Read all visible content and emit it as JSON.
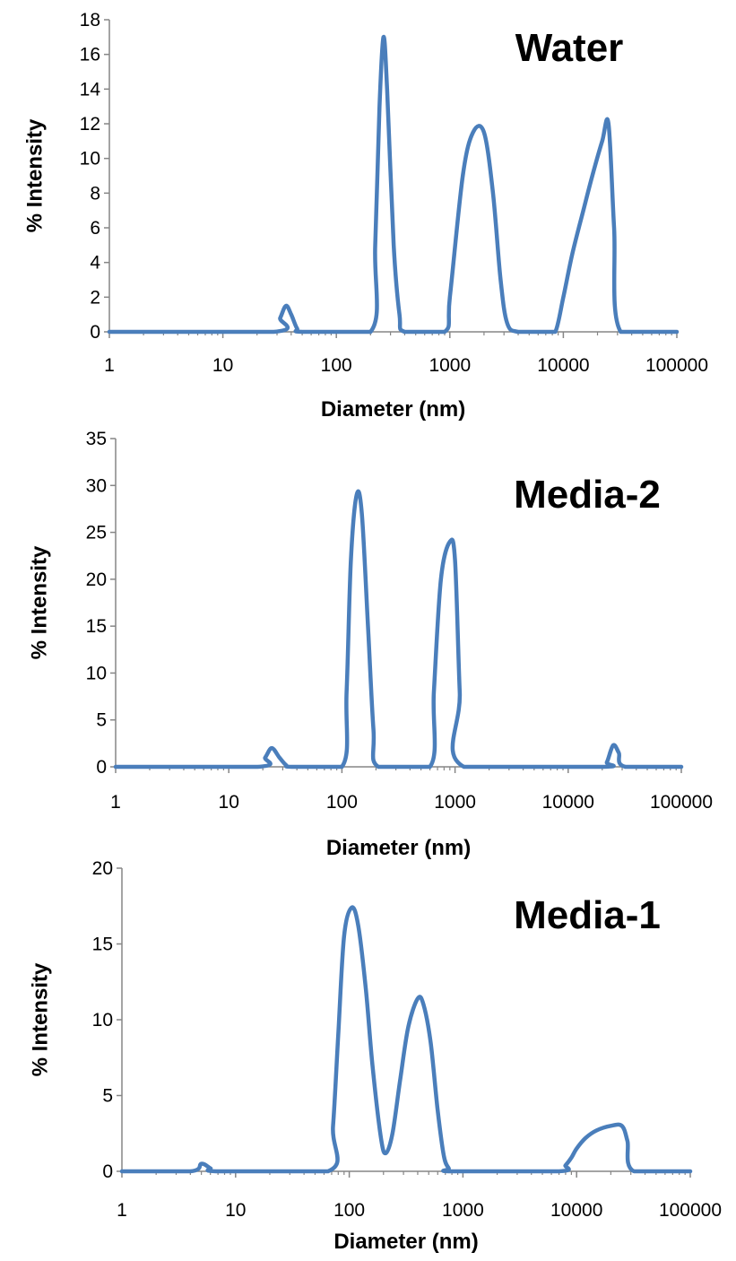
{
  "style": {
    "line_color": "#4A7EBB",
    "axis_color": "#868686",
    "text_color": "#000000"
  },
  "chart_data": [
    {
      "type": "line",
      "title": "Water",
      "xlabel": "Diameter (nm)",
      "ylabel": "% Intensity",
      "xscale": "log",
      "xlim": [
        1,
        100000
      ],
      "ylim": [
        0,
        18
      ],
      "xticks": [
        "1",
        "10",
        "100",
        "1000",
        "10000",
        "100000"
      ],
      "yticks": [
        "0",
        "2",
        "4",
        "6",
        "8",
        "10",
        "12",
        "14",
        "16",
        "18"
      ],
      "grid": false,
      "series": [
        {
          "x": [
            1,
            28,
            32,
            36,
            40,
            45,
            50,
            200,
            220,
            240,
            260,
            280,
            320,
            360,
            400,
            900,
            1000,
            1300,
            1600,
            2000,
            2400,
            2800,
            3200,
            4000,
            7000,
            8500,
            10000,
            12000,
            15000,
            18000,
            22000,
            25000,
            28000,
            32000,
            100000
          ],
          "y": [
            0,
            0,
            0.8,
            1.5,
            1.0,
            0.2,
            0,
            0,
            5,
            13,
            17,
            14,
            5,
            1,
            0,
            0,
            2,
            9,
            11.5,
            11.5,
            8,
            3,
            0.5,
            0,
            0,
            0,
            2,
            4.5,
            7,
            9,
            11,
            12,
            6,
            0,
            0
          ]
        }
      ]
    },
    {
      "type": "line",
      "title": "Media-2",
      "xlabel": "Diameter (nm)",
      "ylabel": "% Intensity",
      "xscale": "log",
      "xlim": [
        1,
        100000
      ],
      "ylim": [
        0,
        35
      ],
      "xticks": [
        "1",
        "10",
        "100",
        "1000",
        "10000",
        "100000"
      ],
      "yticks": [
        "0",
        "5",
        "10",
        "15",
        "20",
        "25",
        "30",
        "35"
      ],
      "grid": false,
      "series": [
        {
          "x": [
            1,
            18,
            21,
            24,
            28,
            32,
            36,
            100,
            110,
            120,
            135,
            150,
            170,
            190,
            210,
            600,
            650,
            750,
            900,
            1000,
            1100,
            1200,
            20000,
            22000,
            25000,
            28000,
            32000,
            100000
          ],
          "y": [
            0,
            0,
            1.0,
            2.0,
            1.0,
            0.2,
            0,
            0,
            8,
            22,
            29,
            27,
            15,
            4,
            0,
            0,
            8,
            20,
            24,
            22,
            8,
            0,
            0,
            0.5,
            2.3,
            1.5,
            0,
            0
          ]
        }
      ]
    },
    {
      "type": "line",
      "title": "Media-1",
      "xlabel": "Diameter (nm)",
      "ylabel": "% Intensity",
      "xscale": "log",
      "xlim": [
        1,
        100000
      ],
      "ylim": [
        0,
        20
      ],
      "xticks": [
        "1",
        "10",
        "100",
        "1000",
        "10000",
        "100000"
      ],
      "yticks": [
        "0",
        "5",
        "10",
        "15",
        "20"
      ],
      "grid": false,
      "series": [
        {
          "x": [
            1,
            4,
            5,
            6,
            7,
            65,
            72,
            80,
            90,
            105,
            120,
            140,
            160,
            190,
            210,
            240,
            280,
            330,
            400,
            450,
            520,
            600,
            680,
            750,
            800,
            7000,
            8000,
            9000,
            10000,
            12000,
            15000,
            20000,
            25000,
            28000,
            32000,
            100000
          ],
          "y": [
            0,
            0,
            0.5,
            0.2,
            0,
            0,
            3,
            9,
            15.5,
            17.4,
            16.2,
            12,
            7,
            2.2,
            1.2,
            2.5,
            6,
            9.5,
            11.4,
            11,
            8.5,
            4,
            1,
            0.2,
            0,
            0,
            0.4,
            0.9,
            1.5,
            2.2,
            2.7,
            3.0,
            3.0,
            2.0,
            0,
            0
          ]
        }
      ]
    }
  ]
}
